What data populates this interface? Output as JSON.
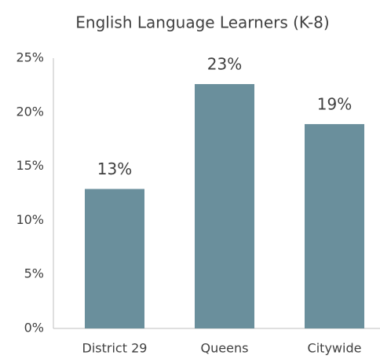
{
  "chart_data": {
    "type": "bar",
    "title": "English Language Learners (K-8)",
    "categories": [
      "District 29",
      "Queens",
      "Citywide"
    ],
    "values": [
      12.9,
      22.6,
      18.9
    ],
    "value_labels": [
      "13%",
      "23%",
      "19%"
    ],
    "color": "#6a8f9c",
    "ylim": [
      0,
      25
    ],
    "yticks": [
      {
        "value": 0,
        "label": "0%"
      },
      {
        "value": 5,
        "label": "5%"
      },
      {
        "value": 10,
        "label": "10%"
      },
      {
        "value": 15,
        "label": "15%"
      },
      {
        "value": 20,
        "label": "20%"
      },
      {
        "value": 25,
        "label": "25%"
      }
    ],
    "grid": false
  }
}
